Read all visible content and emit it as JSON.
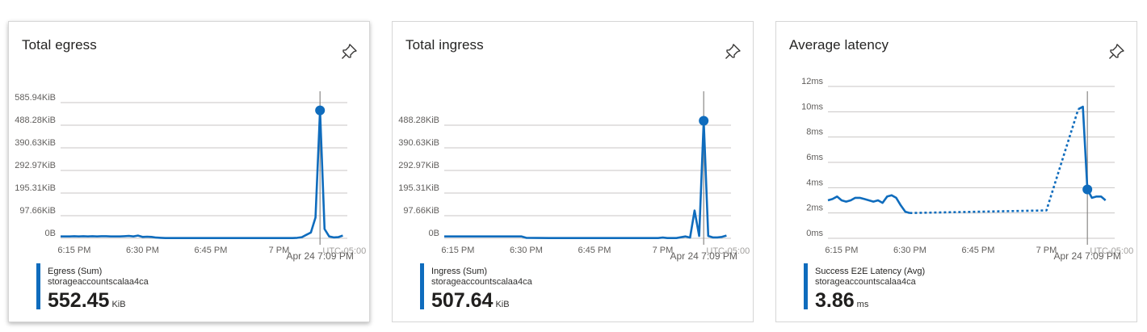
{
  "tiles": [
    {
      "title": "Total egress",
      "pin_icon": "pin-icon",
      "legend": {
        "name": "Egress (Sum)",
        "resource": "storageaccountscalaa4ca",
        "value": "552.45",
        "unit": "KiB"
      },
      "tooltip": {
        "time": "Apr 24 7:09 PM",
        "timezone": "UTC-05:00"
      }
    },
    {
      "title": "Total ingress",
      "pin_icon": "pin-icon",
      "legend": {
        "name": "Ingress (Sum)",
        "resource": "storageaccountscalaa4ca",
        "value": "507.64",
        "unit": "KiB"
      },
      "tooltip": {
        "time": "Apr 24 7:09 PM",
        "timezone": "UTC-05:00"
      }
    },
    {
      "title": "Average latency",
      "pin_icon": "pin-icon",
      "legend": {
        "name": "Success E2E Latency (Avg)",
        "resource": "storageaccountscalaa4ca",
        "value": "3.86",
        "unit": "ms"
      },
      "tooltip": {
        "time": "Apr 24 7:09 PM",
        "timezone": "UTC-05:00"
      }
    }
  ],
  "colors": {
    "series": "#0f6cbd",
    "grid": "#c8c6c4",
    "axis_text": "#605e5c",
    "cursor": "#8a8886"
  },
  "chart_data": [
    {
      "type": "line",
      "title": "Total egress",
      "xlabel": "",
      "ylabel": "",
      "x_unit": "minutes after 6:00 PM",
      "xlim": [
        12,
        75
      ],
      "x_ticks": [
        15,
        30,
        45,
        60
      ],
      "x_tick_labels": [
        "6:15 PM",
        "6:30 PM",
        "6:45 PM",
        "7 PM"
      ],
      "ylim": [
        0,
        585.94
      ],
      "y_ticks": [
        0,
        97.66,
        195.31,
        292.97,
        390.63,
        488.28,
        585.94
      ],
      "y_tick_labels": [
        "0B",
        "97.66KiB",
        "195.31KiB",
        "292.97KiB",
        "390.63KiB",
        "488.28KiB",
        "585.94KiB"
      ],
      "grid": true,
      "cursor_x": 69,
      "series": [
        {
          "name": "Egress (Sum)",
          "x": [
            12,
            13,
            14,
            15,
            16,
            17,
            18,
            19,
            20,
            21,
            22,
            23,
            24,
            25,
            26,
            27,
            28,
            29,
            30,
            31,
            32,
            33,
            34,
            35,
            40,
            45,
            50,
            55,
            60,
            62,
            63,
            64,
            65,
            66,
            67,
            68,
            69,
            70,
            71,
            72,
            73,
            74
          ],
          "y": [
            8,
            8,
            8,
            9,
            8,
            9,
            8,
            9,
            8,
            9,
            9,
            8,
            8,
            8,
            9,
            10,
            8,
            12,
            6,
            7,
            6,
            3,
            2,
            1,
            1,
            1,
            1,
            1,
            1,
            1,
            1,
            2,
            5,
            15,
            25,
            90,
            552.45,
            40,
            8,
            4,
            5,
            12
          ]
        }
      ],
      "marker": {
        "x": 69,
        "y": 552.45
      }
    },
    {
      "type": "line",
      "title": "Total ingress",
      "xlabel": "",
      "ylabel": "",
      "x_unit": "minutes after 6:00 PM",
      "xlim": [
        12,
        75
      ],
      "x_ticks": [
        15,
        30,
        45,
        60
      ],
      "x_tick_labels": [
        "6:15 PM",
        "6:30 PM",
        "6:45 PM",
        "7 PM"
      ],
      "ylim": [
        0,
        585.94
      ],
      "y_ticks": [
        0,
        97.66,
        195.31,
        292.97,
        390.63,
        488.28
      ],
      "y_tick_labels": [
        "0B",
        "97.66KiB",
        "195.31KiB",
        "292.97KiB",
        "390.63KiB",
        "488.28KiB"
      ],
      "grid": true,
      "cursor_x": 69,
      "series": [
        {
          "name": "Ingress (Sum)",
          "x": [
            12,
            15,
            20,
            25,
            28,
            29,
            30,
            35,
            40,
            45,
            50,
            55,
            59,
            60,
            61,
            62,
            63,
            65,
            66,
            67,
            68,
            69,
            70,
            71,
            72,
            73,
            74
          ],
          "y": [
            8,
            8,
            8,
            8,
            8,
            8,
            2,
            1,
            1,
            1,
            1,
            1,
            1,
            3,
            1,
            1,
            1,
            8,
            3,
            120,
            10,
            507.64,
            10,
            4,
            4,
            6,
            12
          ]
        }
      ],
      "marker": {
        "x": 69,
        "y": 507.64
      }
    },
    {
      "type": "line",
      "title": "Average latency",
      "xlabel": "",
      "ylabel": "",
      "x_unit": "minutes after 6:00 PM",
      "xlim": [
        12,
        75
      ],
      "x_ticks": [
        15,
        30,
        45,
        60
      ],
      "x_tick_labels": [
        "6:15 PM",
        "6:30 PM",
        "6:45 PM",
        "7 PM"
      ],
      "ylim": [
        0,
        12
      ],
      "y_ticks": [
        0,
        2,
        4,
        6,
        8,
        10,
        12
      ],
      "y_tick_labels": [
        "0ms",
        "2ms",
        "4ms",
        "6ms",
        "8ms",
        "10ms",
        "12ms"
      ],
      "grid": true,
      "cursor_x": 69,
      "series": [
        {
          "name": "Success E2E Latency (Avg)",
          "x": [
            12,
            13,
            14,
            15,
            16,
            17,
            18,
            19,
            20,
            21,
            22,
            23,
            24,
            25,
            26,
            27,
            28,
            29,
            30
          ],
          "y": [
            3.0,
            3.1,
            3.3,
            3.0,
            2.9,
            3.0,
            3.2,
            3.2,
            3.1,
            3.0,
            2.9,
            3.0,
            2.8,
            3.3,
            3.4,
            3.2,
            2.6,
            2.1,
            2.0
          ]
        },
        {
          "name": "Success E2E Latency (Avg) gap",
          "dashed": true,
          "x": [
            30,
            60,
            67
          ],
          "y": [
            2.0,
            2.2,
            10.2
          ]
        },
        {
          "name": "Success E2E Latency (Avg) tail",
          "x": [
            67,
            68,
            69,
            70,
            71,
            72,
            73
          ],
          "y": [
            10.2,
            10.4,
            3.86,
            3.2,
            3.3,
            3.3,
            3.0
          ]
        }
      ],
      "marker": {
        "x": 69,
        "y": 3.86
      }
    }
  ]
}
